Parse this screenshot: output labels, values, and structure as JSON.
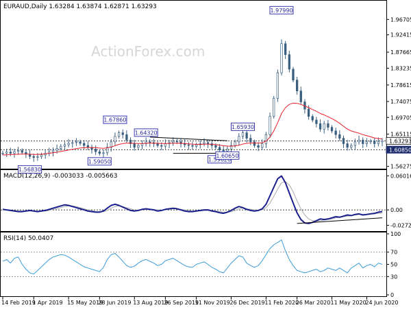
{
  "symbol_header": "EURAUD,Daily  1.63284 1.63874 1.62871 1.63293",
  "watermark": "ActionForex.com",
  "chart_data": {
    "type": "line",
    "panels": [
      {
        "id": "price",
        "kind": "candlestick-approx",
        "header": "EURAUD,Daily  1.63284 1.63874 1.62871 1.63293",
        "ylim": [
          1.56,
          1.99
        ],
        "y_ticks": [
          1.9667,
          1.9245,
          1.8767,
          1.8325,
          1.7865,
          1.741,
          1.6971,
          1.6512,
          1.6085,
          1.5627
        ],
        "y_tick_labels": [
          "1.96705",
          "1.92415",
          "1.87665",
          "1.83235",
          "1.78615",
          "1.74075",
          "1.69705",
          "1.65115",
          "1.60850",
          "1.56275"
        ],
        "current_value": "1.63293",
        "current_level": 1.63293,
        "hline_value": "1.60850",
        "hline_level": 1.6085,
        "dotted_levels": [
          1.6329,
          1.6085
        ],
        "series": [
          {
            "name": "",
            "color": "#3b5f7f",
            "values": [
              1.599,
              1.602,
              1.5985,
              1.6035,
              1.606,
              1.601,
              1.596,
              1.59,
              1.587,
              1.589,
              1.594,
              1.598,
              1.602,
              1.607,
              1.612,
              1.618,
              1.622,
              1.626,
              1.628,
              1.63,
              1.626,
              1.62,
              1.615,
              1.61,
              1.603,
              1.598,
              1.6,
              1.615,
              1.63,
              1.645,
              1.655,
              1.65,
              1.635,
              1.625,
              1.615,
              1.62,
              1.625,
              1.63,
              1.628,
              1.625,
              1.62,
              1.618,
              1.625,
              1.628,
              1.632,
              1.63,
              1.625,
              1.622,
              1.62,
              1.618,
              1.622,
              1.625,
              1.628,
              1.625,
              1.62,
              1.615,
              1.608,
              1.605,
              1.61,
              1.62,
              1.63,
              1.645,
              1.655,
              1.64,
              1.63,
              1.62,
              1.615,
              1.625,
              1.65,
              1.7,
              1.75,
              1.82,
              1.9,
              1.87,
              1.83,
              1.8,
              1.77,
              1.74,
              1.72,
              1.7,
              1.69,
              1.68,
              1.665,
              1.68,
              1.67,
              1.66,
              1.65,
              1.64,
              1.625,
              1.615,
              1.62,
              1.63,
              1.635,
              1.625,
              1.63,
              1.632,
              1.625,
              1.63,
              1.6329
            ]
          },
          {
            "name": "",
            "color": "#e8202a",
            "values": [
              1.594,
              1.5945,
              1.595,
              1.5955,
              1.596,
              1.5965,
              1.5965,
              1.596,
              1.5955,
              1.5955,
              1.596,
              1.597,
              1.5985,
              1.6,
              1.6015,
              1.6035,
              1.6055,
              1.6075,
              1.6095,
              1.6115,
              1.613,
              1.614,
              1.6145,
              1.6145,
              1.614,
              1.613,
              1.6125,
              1.6135,
              1.616,
              1.6195,
              1.623,
              1.6255,
              1.6265,
              1.6265,
              1.626,
              1.6255,
              1.6255,
              1.626,
              1.6265,
              1.6265,
              1.626,
              1.6255,
              1.6255,
              1.6258,
              1.6262,
              1.6265,
              1.6262,
              1.6255,
              1.6245,
              1.6235,
              1.6232,
              1.6232,
              1.6235,
              1.6236,
              1.6232,
              1.6224,
              1.621,
              1.6195,
              1.6185,
              1.6182,
              1.619,
              1.621,
              1.624,
              1.626,
              1.627,
              1.627,
              1.6265,
              1.6275,
              1.632,
              1.643,
              1.66,
              1.683,
              1.708,
              1.724,
              1.733,
              1.7365,
              1.736,
              1.733,
              1.729,
              1.724,
              1.719,
              1.714,
              1.708,
              1.704,
              1.699,
              1.694,
              1.688,
              1.681,
              1.673,
              1.665,
              1.66,
              1.657,
              1.654,
              1.65,
              1.647,
              1.644,
              1.641,
              1.639,
              1.638
            ]
          }
        ],
        "annotations": [
          {
            "text": "1.56830",
            "x_index": 7,
            "level": 1.5683,
            "placement": "below"
          },
          {
            "text": "1.67860",
            "x_index": 29,
            "level": 1.6786,
            "placement": "above"
          },
          {
            "text": "1.59050",
            "x_index": 25,
            "level": 1.5905,
            "placement": "below"
          },
          {
            "text": "1.64320",
            "x_index": 37,
            "level": 1.6432,
            "placement": "above"
          },
          {
            "text": "1.59620",
            "x_index": 56,
            "level": 1.5962,
            "placement": "below"
          },
          {
            "text": "1.60650",
            "x_index": 58,
            "level": 1.6065,
            "placement": "below"
          },
          {
            "text": "1.65930",
            "x_index": 62,
            "level": 1.6593,
            "placement": "above"
          },
          {
            "text": "1.97990",
            "x_index": 72,
            "level": 1.9799,
            "placement": "above"
          }
        ],
        "trendlines": [
          {
            "from": [
              38,
              1.6432
            ],
            "to": [
              58,
              1.633
            ],
            "color": "#000000"
          },
          {
            "from": [
              44,
              1.5985
            ],
            "to": [
              60,
              1.599
            ],
            "color": "#000000"
          }
        ]
      },
      {
        "id": "macd",
        "header": "MACD(12,26,9) -0.003033 -0.005663",
        "ylim": [
          -0.035,
          0.068
        ],
        "y_ticks": [
          0.06016,
          0.0,
          -0.02725
        ],
        "y_tick_labels": [
          "0.060165",
          "0.00",
          "-0.02725"
        ],
        "current_value": "0.00",
        "series": [
          {
            "name": "",
            "color": "#1a1f8c",
            "values": [
              0.001,
              0.0,
              -0.001,
              -0.002,
              -0.003,
              -0.003,
              -0.002,
              -0.001,
              -0.002,
              -0.003,
              -0.002,
              -0.001,
              0.001,
              0.003,
              0.005,
              0.007,
              0.009,
              0.008,
              0.006,
              0.004,
              0.002,
              0.0,
              -0.002,
              -0.003,
              -0.004,
              -0.004,
              -0.002,
              0.003,
              0.008,
              0.01,
              0.008,
              0.005,
              0.002,
              -0.001,
              -0.002,
              -0.001,
              0.001,
              0.002,
              0.001,
              0.0,
              -0.002,
              -0.001,
              0.001,
              0.002,
              0.003,
              0.002,
              0.0,
              -0.002,
              -0.003,
              -0.003,
              -0.002,
              -0.001,
              0.0,
              0.0,
              -0.002,
              -0.003,
              -0.005,
              -0.006,
              -0.004,
              -0.001,
              0.003,
              0.006,
              0.004,
              0.001,
              -0.001,
              -0.002,
              -0.001,
              0.002,
              0.01,
              0.025,
              0.04,
              0.055,
              0.06,
              0.048,
              0.03,
              0.012,
              -0.005,
              -0.017,
              -0.023,
              -0.024,
              -0.022,
              -0.019,
              -0.016,
              -0.017,
              -0.016,
              -0.014,
              -0.012,
              -0.013,
              -0.011,
              -0.009,
              -0.01,
              -0.008,
              -0.007,
              -0.009,
              -0.008,
              -0.007,
              -0.006,
              -0.004,
              -0.003
            ]
          },
          {
            "name": "",
            "color": "#aaaaaa",
            "values": [
              0.0,
              0.0,
              -0.001,
              -0.001,
              -0.002,
              -0.002,
              -0.002,
              -0.002,
              -0.002,
              -0.002,
              -0.002,
              -0.002,
              -0.001,
              0.001,
              0.002,
              0.004,
              0.006,
              0.007,
              0.007,
              0.006,
              0.004,
              0.002,
              0.0,
              -0.001,
              -0.003,
              -0.003,
              -0.003,
              -0.001,
              0.003,
              0.006,
              0.007,
              0.006,
              0.004,
              0.002,
              0.0,
              -0.001,
              0.0,
              0.001,
              0.001,
              0.001,
              0.0,
              -0.001,
              0.0,
              0.001,
              0.002,
              0.002,
              0.001,
              0.0,
              -0.001,
              -0.002,
              -0.002,
              -0.002,
              -0.001,
              -0.001,
              -0.001,
              -0.002,
              -0.003,
              -0.004,
              -0.004,
              -0.003,
              -0.001,
              0.002,
              0.003,
              0.002,
              0.001,
              0.0,
              -0.001,
              0.0,
              0.004,
              0.012,
              0.024,
              0.037,
              0.048,
              0.05,
              0.044,
              0.032,
              0.016,
              0.002,
              -0.009,
              -0.016,
              -0.019,
              -0.02,
              -0.019,
              -0.018,
              -0.017,
              -0.016,
              -0.014,
              -0.013,
              -0.012,
              -0.011,
              -0.01,
              -0.009,
              -0.008,
              -0.008,
              -0.008,
              -0.007,
              -0.007,
              -0.006,
              -0.006
            ]
          }
        ],
        "trendlines": [
          {
            "from": [
              76,
              -0.024
            ],
            "to": [
              98,
              -0.014
            ],
            "color": "#000000"
          }
        ]
      },
      {
        "id": "rsi",
        "header": "RSI(14) 50.0407",
        "ylim": [
          0,
          100
        ],
        "y_ticks": [
          100,
          70,
          50,
          30,
          0
        ],
        "y_tick_labels": [
          "100",
          "70",
          "50",
          "30",
          "0"
        ],
        "levels": [
          70,
          30
        ],
        "series": [
          {
            "name": "",
            "color": "#3b9bd8",
            "values": [
              55,
              58,
              52,
              60,
              62,
              50,
              42,
              36,
              34,
              40,
              46,
              52,
              58,
              62,
              64,
              66,
              65,
              62,
              58,
              54,
              50,
              46,
              44,
              42,
              40,
              38,
              45,
              58,
              66,
              68,
              62,
              55,
              48,
              45,
              47,
              52,
              56,
              58,
              55,
              52,
              48,
              50,
              56,
              58,
              60,
              56,
              52,
              48,
              46,
              45,
              50,
              52,
              54,
              50,
              45,
              42,
              38,
              36,
              44,
              52,
              58,
              64,
              62,
              52,
              48,
              45,
              48,
              56,
              66,
              76,
              82,
              86,
              90,
              72,
              58,
              48,
              40,
              38,
              36,
              38,
              40,
              42,
              38,
              40,
              44,
              42,
              40,
              44,
              40,
              36,
              44,
              48,
              52,
              44,
              48,
              50,
              46,
              52,
              50
            ]
          }
        ]
      }
    ],
    "x_tick_labels": [
      "14 Feb 2019",
      "1 Apr 2019",
      "15 May 2019",
      "28 Jun 2019",
      "13 Aug 2019",
      "26 Sep 2019",
      "11 Nov 2019",
      "26 Dec 2019",
      "11 Feb 2020",
      "26 Mar 2020",
      "11 May 2020",
      "24 Jun 2020"
    ],
    "x_tick_indices": [
      0,
      8,
      17,
      25,
      34,
      42,
      50,
      59,
      68,
      76,
      85,
      94
    ],
    "grid": false,
    "colors": {
      "price": "#3b5f7f",
      "ma": "#e8202a",
      "macd": "#1a1f8c",
      "macd_signal": "#aaaaaa",
      "rsi": "#3b9bd8",
      "watermark": "#d8d8d8"
    }
  }
}
